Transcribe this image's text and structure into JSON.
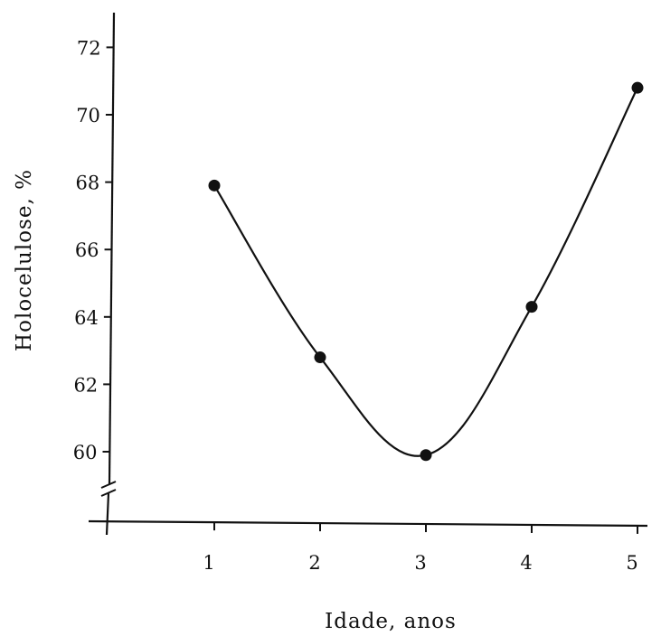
{
  "chart_data": {
    "type": "line",
    "xlabel": "Idade, anos",
    "ylabel": "Holocelulose, %",
    "x": [
      1,
      2,
      3,
      4,
      5
    ],
    "series": [
      {
        "values": [
          67.9,
          62.8,
          59.9,
          64.3,
          70.8
        ]
      }
    ],
    "x_ticks": [
      "1",
      "2",
      "3",
      "4",
      "5"
    ],
    "y_ticks": [
      "60",
      "62",
      "64",
      "66",
      "68",
      "70",
      "72"
    ],
    "ylim": [
      60,
      72
    ],
    "y_axis_break": true,
    "grid": false,
    "line_color": "#111111"
  }
}
